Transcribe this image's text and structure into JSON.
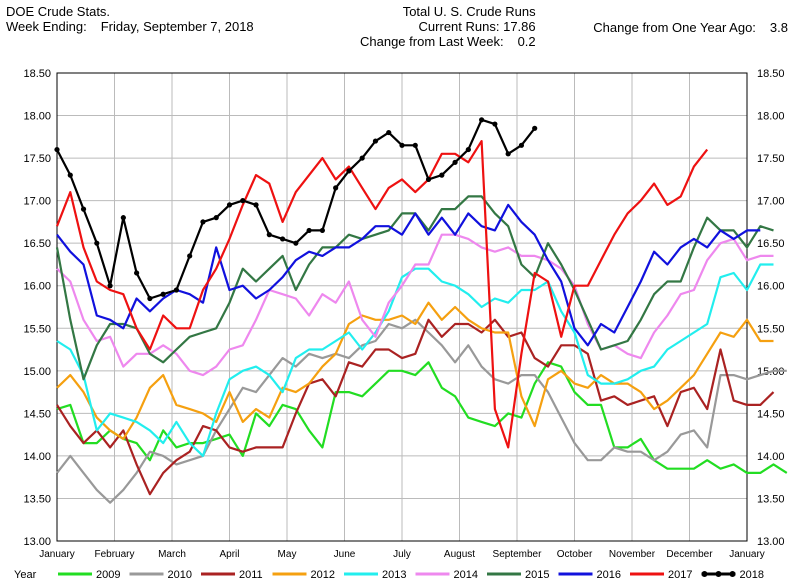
{
  "header": {
    "source": "DOE Crude Stats.",
    "week_label": "Week Ending:",
    "week_date": "Friday, September 7, 2018",
    "title": "Total U. S. Crude Runs",
    "current_label": "Current Runs:",
    "current_value": "17.86",
    "week_change_label": "Change from Last Week:",
    "week_change_value": "0.2",
    "year_change_label": "Change from One Year Ago:",
    "year_change_value": "3.8"
  },
  "chart_data": {
    "type": "line",
    "title": "Total U. S. Crude Runs",
    "xlabel": "",
    "ylabel": "",
    "ylim": [
      13.0,
      18.5
    ],
    "yticks": [
      "13.00",
      "13.50",
      "14.00",
      "14.50",
      "15.00",
      "15.50",
      "16.00",
      "16.50",
      "17.00",
      "17.50",
      "18.00",
      "18.50"
    ],
    "months": [
      "January",
      "February",
      "March",
      "April",
      "May",
      "June",
      "July",
      "August",
      "September",
      "October",
      "November",
      "December",
      "January"
    ],
    "grid": true,
    "legend_position": "bottom",
    "legend_title": "Year",
    "series": [
      {
        "name": "2009",
        "color": "#22dd22",
        "marker": false,
        "values": [
          14.55,
          14.6,
          14.15,
          14.15,
          14.3,
          14.2,
          14.15,
          13.95,
          14.3,
          14.1,
          14.15,
          14.15,
          14.2,
          14.25,
          14.0,
          14.5,
          14.35,
          14.6,
          14.55,
          14.3,
          14.1,
          14.75,
          14.75,
          14.7,
          14.85,
          15.0,
          15.0,
          14.95,
          15.1,
          14.8,
          14.7,
          14.45,
          14.4,
          14.35,
          14.5,
          14.45,
          14.85,
          15.1,
          15.05,
          14.75,
          14.6,
          14.6,
          14.1,
          14.1,
          14.2,
          13.95,
          13.85,
          13.85,
          13.85,
          13.95,
          13.85,
          13.9,
          13.8,
          13.8,
          13.9,
          13.8
        ]
      },
      {
        "name": "2010",
        "color": "#999999",
        "marker": false,
        "values": [
          13.8,
          14.0,
          13.8,
          13.6,
          13.45,
          13.6,
          13.8,
          14.05,
          14.0,
          13.9,
          13.95,
          14.0,
          14.3,
          14.55,
          14.8,
          14.75,
          14.95,
          15.15,
          15.05,
          15.2,
          15.15,
          15.2,
          15.15,
          15.3,
          15.35,
          15.55,
          15.5,
          15.6,
          15.45,
          15.3,
          15.1,
          15.3,
          15.05,
          14.9,
          14.85,
          14.95,
          14.95,
          14.75,
          14.45,
          14.15,
          13.95,
          13.95,
          14.1,
          14.05,
          14.05,
          13.95,
          14.05,
          14.25,
          14.3,
          14.1,
          14.95,
          14.95,
          14.9,
          14.95,
          15.0,
          15.0
        ]
      },
      {
        "name": "2011",
        "color": "#aa2222",
        "marker": false,
        "values": [
          14.6,
          14.35,
          14.15,
          14.3,
          14.1,
          14.3,
          13.9,
          13.55,
          13.8,
          13.95,
          14.05,
          14.35,
          14.3,
          14.1,
          14.05,
          14.1,
          14.1,
          14.1,
          14.5,
          14.85,
          14.9,
          14.7,
          15.1,
          15.05,
          15.25,
          15.25,
          15.15,
          15.2,
          15.6,
          15.4,
          15.55,
          15.55,
          15.45,
          15.6,
          15.4,
          15.45,
          15.15,
          15.05,
          15.3,
          15.3,
          15.2,
          14.65,
          14.7,
          14.6,
          14.65,
          14.7,
          14.35,
          14.75,
          14.8,
          14.55,
          15.25,
          14.65,
          14.6,
          14.6,
          14.75
        ]
      },
      {
        "name": "2012",
        "color": "#f5a010",
        "marker": false,
        "values": [
          14.8,
          14.95,
          14.75,
          14.45,
          14.3,
          14.2,
          14.45,
          14.8,
          14.95,
          14.6,
          14.55,
          14.5,
          14.4,
          14.75,
          14.4,
          14.55,
          14.45,
          14.8,
          14.75,
          14.85,
          15.05,
          15.2,
          15.55,
          15.65,
          15.6,
          15.6,
          15.65,
          15.55,
          15.8,
          15.6,
          15.75,
          15.6,
          15.5,
          15.45,
          15.45,
          14.7,
          14.35,
          14.9,
          15.0,
          14.85,
          14.8,
          14.95,
          14.85,
          14.85,
          14.75,
          14.55,
          14.65,
          14.8,
          14.95,
          15.2,
          15.45,
          15.4,
          15.6,
          15.35,
          15.35
        ]
      },
      {
        "name": "2013",
        "color": "#22eeee",
        "marker": false,
        "values": [
          15.35,
          15.25,
          14.95,
          14.3,
          14.5,
          14.45,
          14.4,
          14.3,
          14.15,
          14.4,
          14.15,
          14.0,
          14.5,
          14.9,
          15.0,
          15.05,
          14.95,
          14.75,
          15.15,
          15.25,
          15.25,
          15.35,
          15.45,
          15.25,
          15.45,
          15.7,
          16.1,
          16.2,
          16.2,
          16.05,
          16.0,
          15.9,
          15.75,
          15.85,
          15.8,
          15.95,
          15.95,
          16.05,
          15.7,
          15.45,
          14.95,
          14.85,
          14.85,
          14.9,
          15.0,
          15.05,
          15.25,
          15.35,
          15.45,
          15.55,
          16.1,
          16.15,
          15.95,
          16.25,
          16.25
        ]
      },
      {
        "name": "2014",
        "color": "#ee88ee",
        "marker": false,
        "values": [
          16.2,
          16.05,
          15.6,
          15.35,
          15.4,
          15.05,
          15.2,
          15.2,
          15.3,
          15.2,
          15.0,
          14.95,
          15.05,
          15.25,
          15.3,
          15.6,
          15.95,
          15.9,
          15.85,
          15.65,
          15.9,
          15.8,
          16.05,
          15.6,
          15.4,
          15.8,
          16.0,
          16.25,
          16.25,
          16.6,
          16.6,
          16.55,
          16.45,
          16.4,
          16.45,
          16.35,
          16.35,
          16.3,
          16.2,
          16.0,
          15.55,
          15.25,
          15.3,
          15.2,
          15.15,
          15.45,
          15.65,
          15.9,
          15.95,
          16.3,
          16.5,
          16.55,
          16.3,
          16.35,
          16.35
        ]
      },
      {
        "name": "2015",
        "color": "#337744",
        "marker": false,
        "values": [
          16.45,
          15.6,
          14.9,
          15.3,
          15.55,
          15.55,
          15.5,
          15.2,
          15.1,
          15.25,
          15.4,
          15.45,
          15.5,
          15.8,
          16.2,
          16.05,
          16.2,
          16.35,
          15.95,
          16.25,
          16.45,
          16.45,
          16.6,
          16.55,
          16.6,
          16.65,
          16.85,
          16.85,
          16.65,
          16.9,
          16.9,
          17.05,
          17.05,
          16.85,
          16.7,
          16.25,
          16.1,
          16.5,
          16.25,
          15.95,
          15.6,
          15.25,
          15.3,
          15.35,
          15.6,
          15.9,
          16.05,
          16.05,
          16.45,
          16.8,
          16.65,
          16.65,
          16.45,
          16.7,
          16.65
        ]
      },
      {
        "name": "2016",
        "color": "#1111dd",
        "marker": false,
        "values": [
          16.6,
          16.4,
          16.25,
          15.65,
          15.6,
          15.5,
          15.85,
          15.7,
          15.85,
          15.95,
          15.9,
          15.8,
          16.45,
          15.95,
          16.0,
          15.85,
          15.95,
          16.1,
          16.3,
          16.4,
          16.35,
          16.45,
          16.45,
          16.55,
          16.7,
          16.7,
          16.6,
          16.85,
          16.6,
          16.8,
          16.6,
          16.85,
          16.7,
          16.65,
          16.95,
          16.75,
          16.6,
          16.3,
          16.05,
          15.5,
          15.3,
          15.55,
          15.45,
          15.75,
          16.05,
          16.4,
          16.25,
          16.45,
          16.55,
          16.45,
          16.65,
          16.55,
          16.65,
          16.65
        ]
      },
      {
        "name": "2017",
        "color": "#ee1111",
        "marker": false,
        "values": [
          16.7,
          17.1,
          16.45,
          16.05,
          15.95,
          15.9,
          15.5,
          15.25,
          15.65,
          15.5,
          15.5,
          15.95,
          16.2,
          16.55,
          16.95,
          17.3,
          17.2,
          16.75,
          17.1,
          17.3,
          17.5,
          17.25,
          17.4,
          17.15,
          16.9,
          17.15,
          17.25,
          17.1,
          17.25,
          17.55,
          17.55,
          17.45,
          17.7,
          14.55,
          14.1,
          15.2,
          16.15,
          16.05,
          15.4,
          16.0,
          16.0,
          16.3,
          16.6,
          16.85,
          17.0,
          17.2,
          16.95,
          17.05,
          17.4,
          17.6
        ]
      },
      {
        "name": "2018",
        "color": "#000000",
        "marker": true,
        "values": [
          17.6,
          17.3,
          16.9,
          16.5,
          16.0,
          16.8,
          16.15,
          15.85,
          15.9,
          15.95,
          16.35,
          16.75,
          16.8,
          16.95,
          17.0,
          16.95,
          16.6,
          16.55,
          16.5,
          16.65,
          16.65,
          17.15,
          17.35,
          17.5,
          17.7,
          17.8,
          17.65,
          17.65,
          17.25,
          17.3,
          17.45,
          17.6,
          17.95,
          17.9,
          17.55,
          17.65,
          17.85
        ]
      }
    ]
  }
}
